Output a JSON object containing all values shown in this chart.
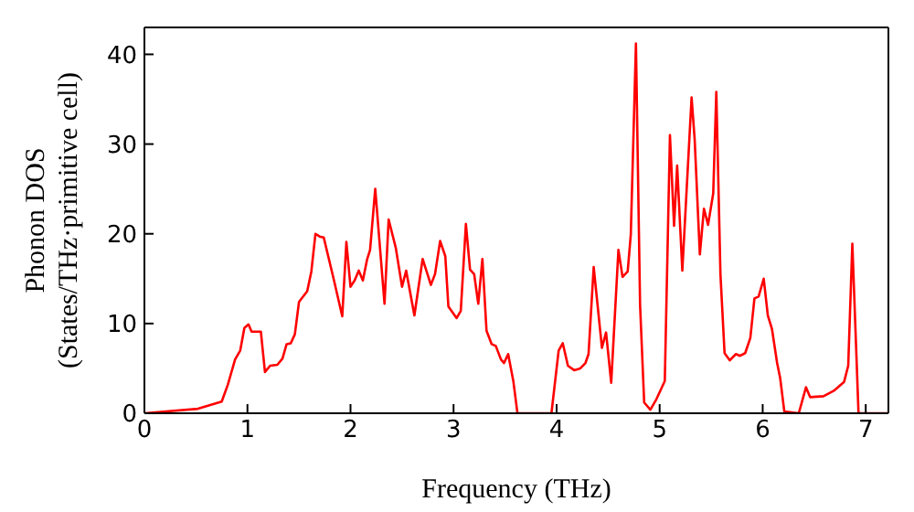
{
  "chart_data": {
    "type": "line",
    "xlabel": "Frequency (THz)",
    "ylabel": "Phonon DOS\n(States/THz·primitive cell)",
    "x": [
      0,
      0.52,
      0.75,
      0.81,
      0.88,
      0.93,
      0.97,
      1.01,
      1.04,
      1.13,
      1.17,
      1.22,
      1.29,
      1.34,
      1.38,
      1.42,
      1.46,
      1.5,
      1.58,
      1.62,
      1.66,
      1.7,
      1.74,
      1.84,
      1.92,
      1.96,
      2.0,
      2.04,
      2.08,
      2.12,
      2.16,
      2.19,
      2.24,
      2.33,
      2.37,
      2.44,
      2.5,
      2.54,
      2.62,
      2.7,
      2.78,
      2.82,
      2.87,
      2.92,
      2.95,
      3.03,
      3.07,
      3.12,
      3.16,
      3.2,
      3.24,
      3.28,
      3.32,
      3.37,
      3.41,
      3.46,
      3.49,
      3.53,
      3.58,
      3.62,
      3.95,
      4.02,
      4.06,
      4.11,
      4.17,
      4.23,
      4.28,
      4.31,
      4.36,
      4.44,
      4.48,
      4.53,
      4.6,
      4.64,
      4.69,
      4.72,
      4.77,
      4.81,
      4.85,
      4.91,
      4.97,
      5.05,
      5.1,
      5.14,
      5.17,
      5.22,
      5.31,
      5.34,
      5.39,
      5.43,
      5.47,
      5.52,
      5.55,
      5.59,
      5.63,
      5.68,
      5.74,
      5.78,
      5.83,
      5.88,
      5.92,
      5.96,
      6.01,
      6.05,
      6.09,
      6.14,
      6.17,
      6.21,
      6.35,
      6.42,
      6.46,
      6.59,
      6.69,
      6.79,
      6.83,
      6.87,
      6.93,
      7.22
    ],
    "series": [
      {
        "color": "#ff0000",
        "values": [
          0,
          0.5,
          1.3,
          3.2,
          6,
          7,
          9.5,
          9.9,
          9.1,
          9.1,
          4.6,
          5.3,
          5.4,
          6.1,
          7.7,
          7.8,
          8.8,
          12.4,
          13.6,
          15.8,
          20,
          19.7,
          19.6,
          14.8,
          10.8,
          19.1,
          14.1,
          14.8,
          15.9,
          14.8,
          17.1,
          18.2,
          25,
          12.2,
          21.6,
          18.4,
          14.1,
          15.9,
          10.9,
          17.2,
          14.3,
          15.5,
          19.2,
          17.5,
          11.9,
          10.6,
          11.4,
          21.1,
          16,
          15.5,
          12.2,
          17.2,
          9.2,
          7.7,
          7.5,
          6,
          5.6,
          6.6,
          3.6,
          0,
          0,
          7,
          7.8,
          5.3,
          4.8,
          5,
          5.6,
          6.6,
          16.3,
          7.3,
          9,
          3.4,
          18.2,
          15.2,
          15.8,
          19.9,
          41.2,
          12.1,
          1.2,
          0.4,
          1.6,
          3.6,
          31,
          20.9,
          27.6,
          15.9,
          35.2,
          30.5,
          17.7,
          22.8,
          21,
          24.5,
          35.8,
          15.5,
          6.7,
          5.9,
          6.6,
          6.4,
          6.7,
          8.4,
          12.8,
          13,
          15,
          10.9,
          9.4,
          5.6,
          3.9,
          0.2,
          0,
          2.9,
          1.8,
          1.9,
          2.5,
          3.5,
          5.3,
          18.9,
          0,
          0
        ]
      }
    ],
    "xlim": [
      0,
      7.22
    ],
    "xticks": [
      0,
      1,
      2,
      3,
      4,
      5,
      6,
      7
    ],
    "ylim": [
      0,
      43
    ],
    "yticks": [
      0,
      10,
      20,
      30,
      40
    ],
    "grid": false,
    "legend": false,
    "marker": "none",
    "line_style": "solid"
  }
}
